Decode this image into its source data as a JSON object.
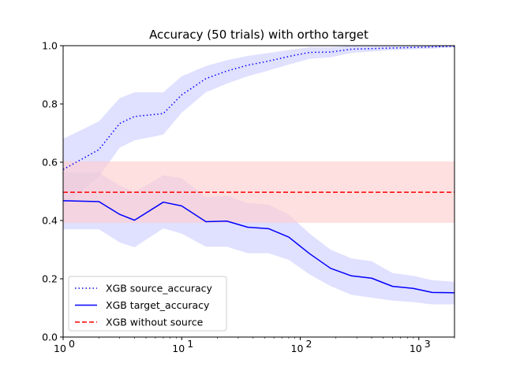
{
  "chart_data": {
    "type": "line",
    "title": "Accuracy (50 trials) with ortho target",
    "xlabel": "",
    "ylabel": "",
    "xscale": "log",
    "xlim": [
      1,
      2000
    ],
    "ylim": [
      0,
      1
    ],
    "grid": false,
    "legend_position": "lower-left",
    "x_ticks": [
      {
        "value": 1,
        "base": "10",
        "exp": "0"
      },
      {
        "value": 10,
        "base": "10",
        "exp": "1"
      },
      {
        "value": 100,
        "base": "10",
        "exp": "2"
      },
      {
        "value": 1000,
        "base": "10",
        "exp": "3"
      }
    ],
    "y_ticks": [
      {
        "value": 0.0,
        "label": "0.0"
      },
      {
        "value": 0.2,
        "label": "0.2"
      },
      {
        "value": 0.4,
        "label": "0.4"
      },
      {
        "value": 0.6,
        "label": "0.6"
      },
      {
        "value": 0.8,
        "label": "0.8"
      },
      {
        "value": 1.0,
        "label": "1.0"
      }
    ],
    "x": [
      1,
      2,
      3,
      4,
      7,
      10,
      16,
      24,
      36,
      54,
      80,
      120,
      180,
      270,
      400,
      600,
      900,
      1300,
      2000
    ],
    "series": [
      {
        "name": "XGB source_accuracy",
        "color": "#0000ff",
        "linestyle": "dotted",
        "band_color": "#ccccff",
        "values": [
          0.575,
          0.643,
          0.733,
          0.757,
          0.767,
          0.831,
          0.887,
          0.913,
          0.933,
          0.947,
          0.963,
          0.977,
          0.978,
          0.988,
          0.99,
          0.992,
          0.994,
          0.996,
          0.998
        ],
        "lower": [
          0.45,
          0.55,
          0.65,
          0.675,
          0.695,
          0.77,
          0.84,
          0.87,
          0.895,
          0.915,
          0.935,
          0.955,
          0.96,
          0.975,
          0.98,
          0.985,
          0.988,
          0.99,
          0.994
        ],
        "upper": [
          0.68,
          0.74,
          0.82,
          0.84,
          0.84,
          0.895,
          0.93,
          0.95,
          0.965,
          0.975,
          0.985,
          0.995,
          0.995,
          1.0,
          1.0,
          1.0,
          1.0,
          1.0,
          1.0
        ]
      },
      {
        "name": "XGB target_accuracy",
        "color": "#0000ff",
        "linestyle": "solid",
        "band_color": "#ccccff",
        "values": [
          0.468,
          0.465,
          0.421,
          0.401,
          0.463,
          0.45,
          0.396,
          0.398,
          0.377,
          0.372,
          0.343,
          0.286,
          0.236,
          0.21,
          0.202,
          0.174,
          0.167,
          0.153,
          0.152
        ],
        "lower": [
          0.37,
          0.37,
          0.325,
          0.308,
          0.373,
          0.355,
          0.31,
          0.31,
          0.288,
          0.288,
          0.265,
          0.215,
          0.175,
          0.145,
          0.135,
          0.125,
          0.12,
          0.112,
          0.112
        ],
        "upper": [
          0.565,
          0.565,
          0.52,
          0.497,
          0.555,
          0.545,
          0.48,
          0.485,
          0.46,
          0.455,
          0.42,
          0.355,
          0.3,
          0.27,
          0.26,
          0.22,
          0.21,
          0.195,
          0.19
        ]
      },
      {
        "name": "XGB without source",
        "color": "#ff0000",
        "linestyle": "dashed",
        "band_color": "#ffcccc",
        "constant": 0.497,
        "band": [
          0.392,
          0.603
        ]
      }
    ]
  }
}
